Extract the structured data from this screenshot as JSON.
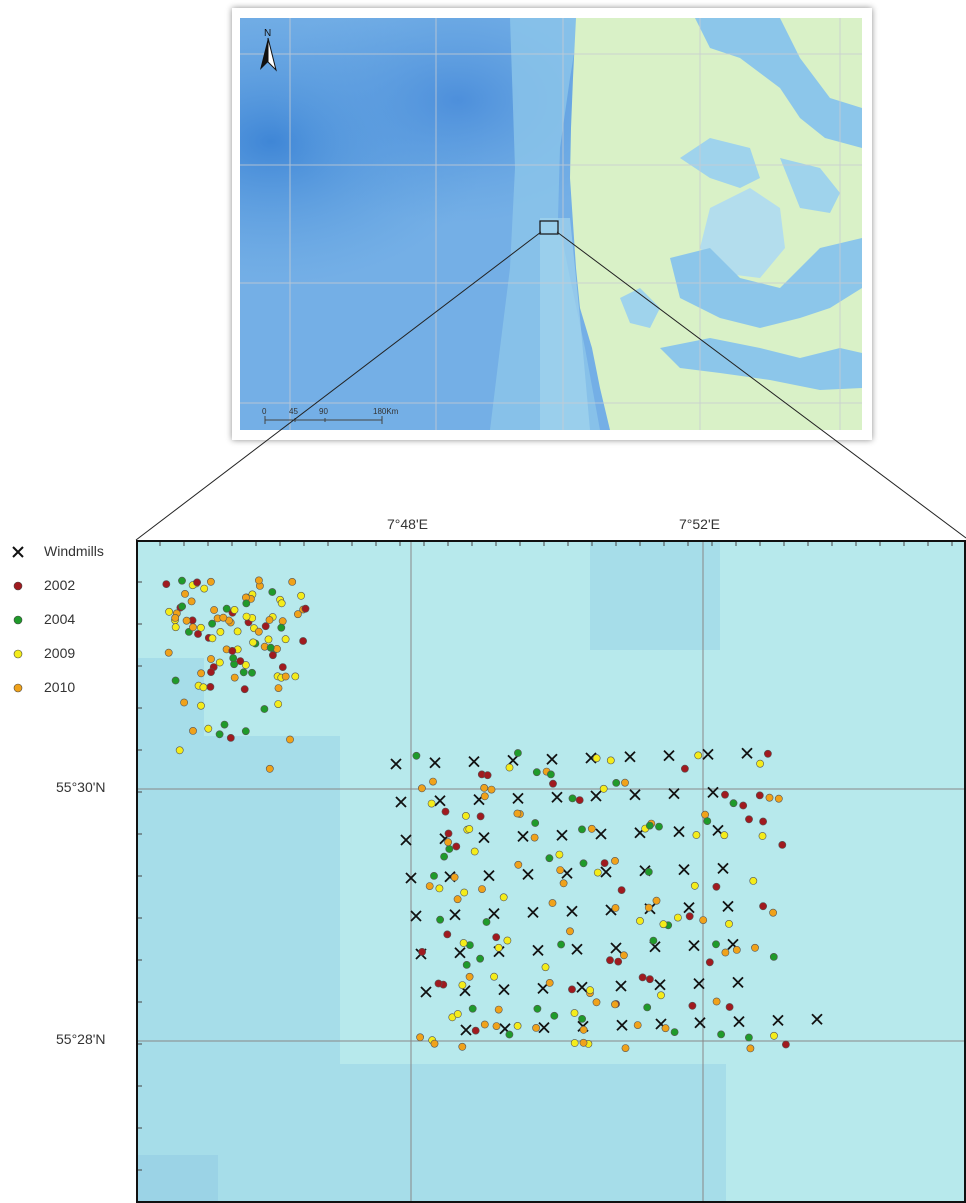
{
  "overview": {
    "north_label": "N",
    "scale_labels": [
      "0",
      "45",
      "90",
      "180Km"
    ]
  },
  "legend": [
    {
      "label": "Windmills",
      "symbol": "cross",
      "color": "#111111"
    },
    {
      "label": "2002",
      "symbol": "dot",
      "color": "#a01a1f"
    },
    {
      "label": "2004",
      "symbol": "dot",
      "color": "#1f9a2a"
    },
    {
      "label": "2009",
      "symbol": "dot",
      "color": "#f4ec1a"
    },
    {
      "label": "2010",
      "symbol": "dot",
      "color": "#f0a21a"
    }
  ],
  "axes": {
    "lon_labels": [
      "7°48'E",
      "7°52'E"
    ],
    "lat_labels": [
      "55°30'N",
      "55°28'N"
    ]
  },
  "colors": {
    "sea_light": "#b7e9ec",
    "sea_mid": "#a6dde9",
    "land": "#d9f1c7",
    "frame": "#111111"
  }
}
